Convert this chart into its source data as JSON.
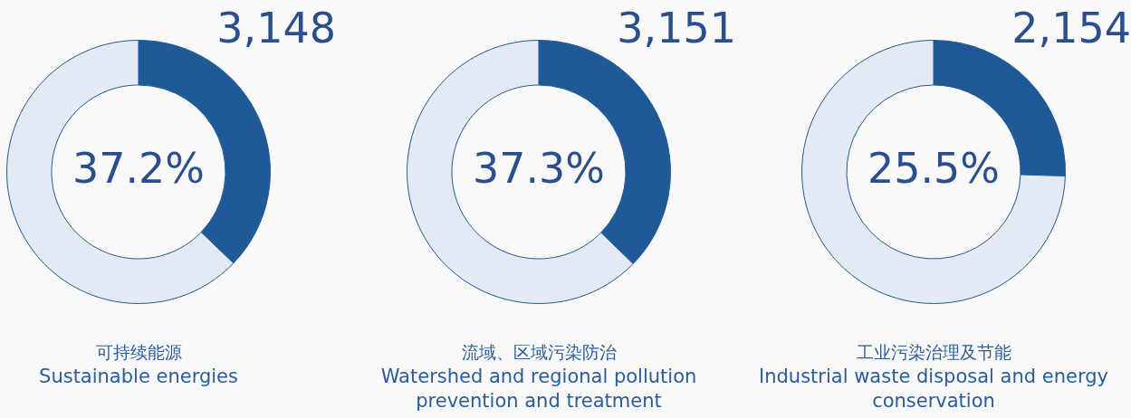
{
  "chart_data": [
    {
      "type": "donut",
      "title": "可持续能源",
      "subtitle": "Sustainable energies",
      "annotations": [
        "3,148"
      ],
      "categories": [
        null,
        null
      ],
      "values": [
        37.2,
        62.8
      ],
      "colors": [
        "#1f5a96",
        "#e4eaf3"
      ],
      "value_labels": [
        "37.2%",
        null
      ]
    },
    {
      "type": "donut",
      "title": "流域、区域污染防治",
      "subtitle": "Watershed and regional pollution prevention and treatment",
      "annotations": [
        "3,151"
      ],
      "categories": [
        null,
        null
      ],
      "values": [
        37.3,
        62.7
      ],
      "colors": [
        "#1f5a96",
        "#e4eaf3"
      ],
      "value_labels": [
        "37.3%",
        null
      ]
    },
    {
      "type": "donut",
      "title": "工业污染治理及节能",
      "subtitle": "Industrial waste disposal and energy conservation",
      "annotations": [
        "2,154"
      ],
      "categories": [
        null,
        null
      ],
      "values": [
        25.5,
        74.5
      ],
      "colors": [
        "#1f5a96",
        "#e4eaf3"
      ],
      "value_labels": [
        "25.5%",
        null
      ]
    }
  ]
}
